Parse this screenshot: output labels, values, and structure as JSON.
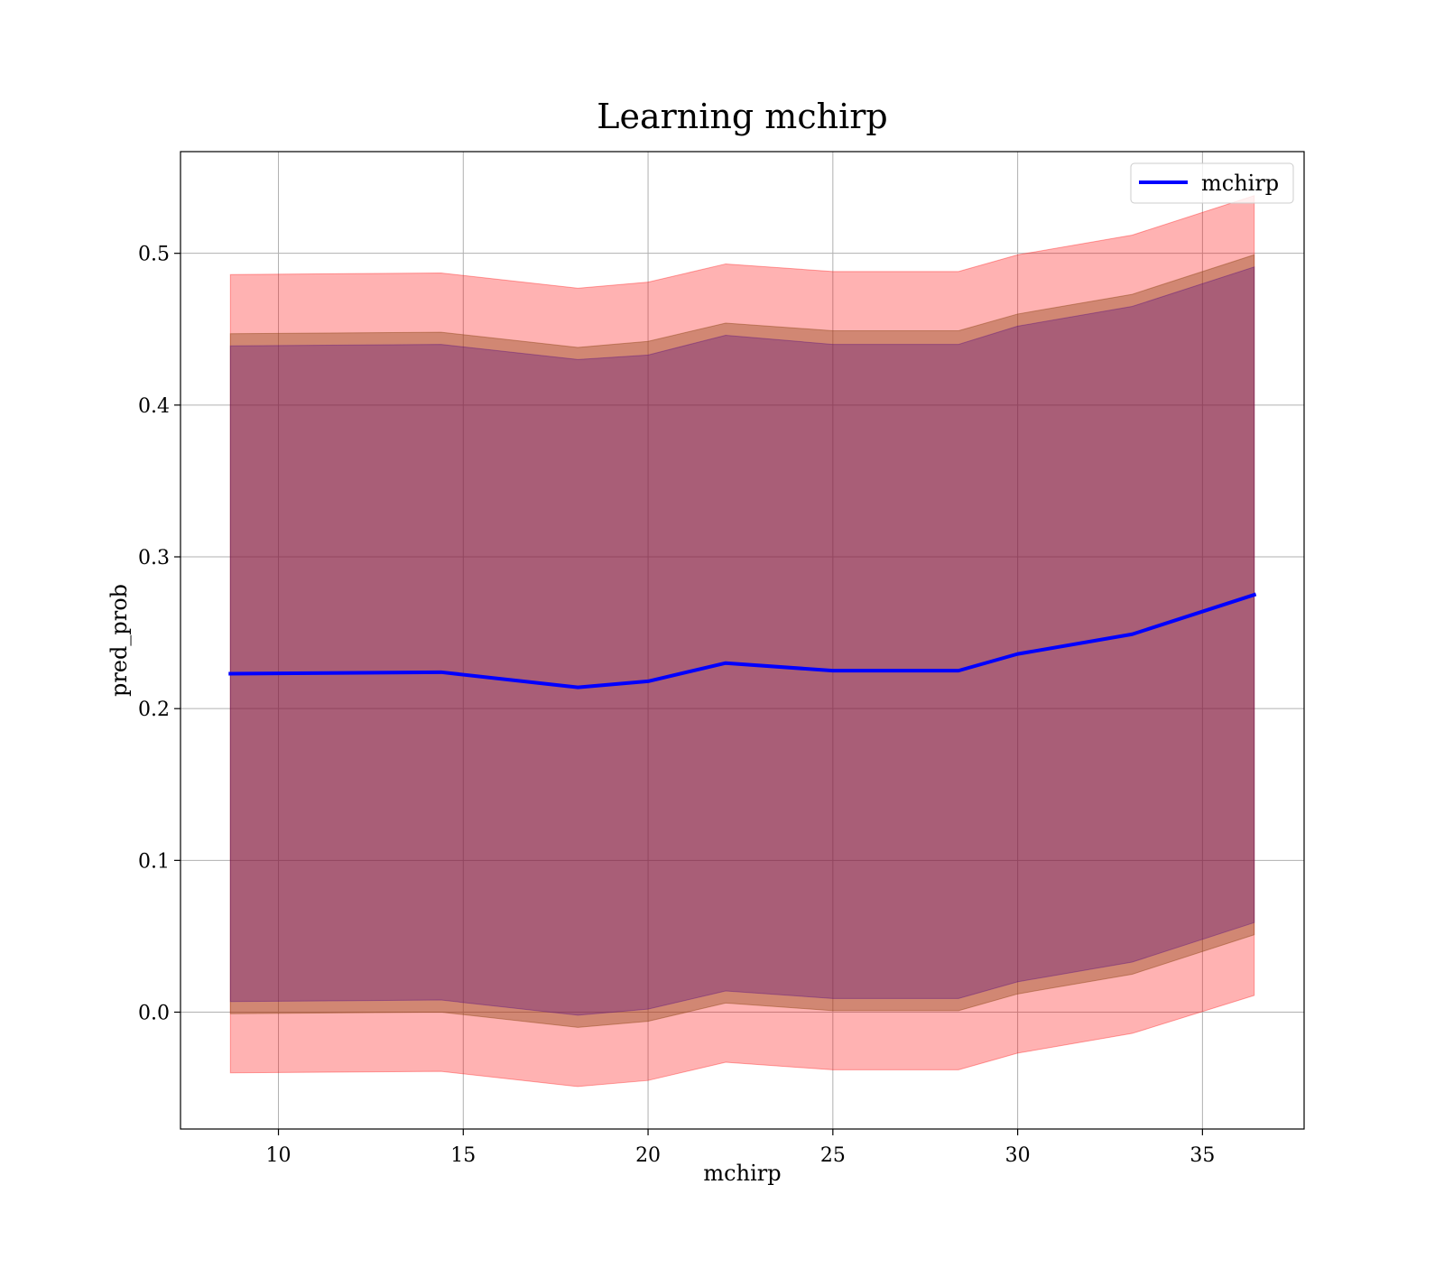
{
  "chart_data": {
    "type": "area",
    "title": "Learning mchirp",
    "xlabel": "mchirp",
    "ylabel": "pred_prob",
    "xlim": [
      7.35,
      37.75
    ],
    "ylim": [
      -0.077,
      0.567
    ],
    "xticks": [
      10,
      15,
      20,
      25,
      30,
      35
    ],
    "yticks": [
      0.0,
      0.1,
      0.2,
      0.3,
      0.4,
      0.5
    ],
    "grid": true,
    "legend_position": "top-right",
    "x": [
      8.7,
      14.4,
      18.1,
      20.0,
      22.1,
      25.0,
      28.4,
      30.0,
      33.1,
      36.4
    ],
    "series": [
      {
        "name": "mchirp",
        "type": "line",
        "color": "#0000ff",
        "values": [
          0.223,
          0.224,
          0.214,
          0.218,
          0.23,
          0.225,
          0.225,
          0.236,
          0.249,
          0.275
        ]
      }
    ],
    "bands": [
      {
        "color": "#ff0000",
        "opacity": 0.3,
        "lower": [
          -0.04,
          -0.039,
          -0.049,
          -0.045,
          -0.033,
          -0.038,
          -0.038,
          -0.027,
          -0.014,
          0.011
        ],
        "upper": [
          0.486,
          0.487,
          0.477,
          0.481,
          0.493,
          0.488,
          0.488,
          0.499,
          0.512,
          0.538
        ]
      },
      {
        "color": "#8b4513",
        "opacity": 0.4,
        "lower": [
          -0.001,
          0.0,
          -0.01,
          -0.006,
          0.006,
          0.001,
          0.001,
          0.012,
          0.025,
          0.051
        ],
        "upper": [
          0.447,
          0.448,
          0.438,
          0.442,
          0.454,
          0.449,
          0.449,
          0.46,
          0.473,
          0.499
        ]
      },
      {
        "color": "#4b0082",
        "opacity": 0.3,
        "lower": [
          0.007,
          0.008,
          -0.002,
          0.002,
          0.014,
          0.009,
          0.009,
          0.02,
          0.033,
          0.059
        ],
        "upper": [
          0.439,
          0.44,
          0.43,
          0.433,
          0.446,
          0.44,
          0.44,
          0.452,
          0.465,
          0.491
        ]
      }
    ]
  }
}
